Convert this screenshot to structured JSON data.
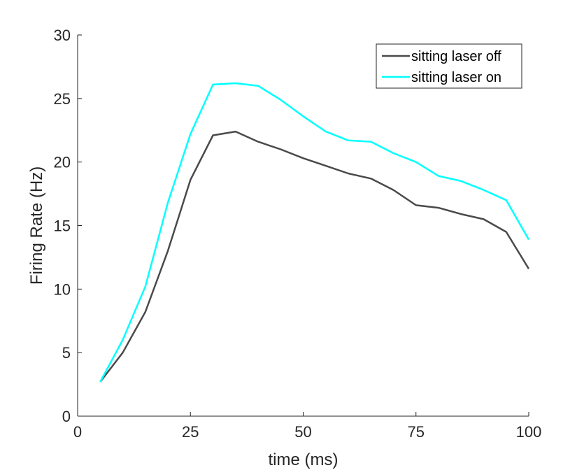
{
  "chart_data": {
    "type": "line",
    "title": "",
    "xlabel": "time (ms)",
    "ylabel": "Firing Rate (Hz)",
    "xlim": [
      0,
      100
    ],
    "ylim": [
      0,
      30
    ],
    "xticks": [
      0,
      25,
      50,
      75,
      100
    ],
    "yticks": [
      0,
      5,
      10,
      15,
      20,
      25,
      30
    ],
    "grid": false,
    "legend_position": "top-right",
    "x": [
      5,
      10,
      15,
      20,
      25,
      30,
      35,
      40,
      45,
      50,
      55,
      60,
      65,
      70,
      75,
      80,
      85,
      90,
      95,
      100
    ],
    "series": [
      {
        "name": "sitting laser off",
        "color": "#4a4a4a",
        "values": [
          2.7,
          5.0,
          8.2,
          13.0,
          18.6,
          22.1,
          22.4,
          21.6,
          21.0,
          20.3,
          19.7,
          19.1,
          18.7,
          17.8,
          16.6,
          16.4,
          15.9,
          15.5,
          14.5,
          11.6
        ]
      },
      {
        "name": "sitting laser on",
        "color": "#00ffff",
        "values": [
          2.7,
          6.0,
          10.2,
          16.8,
          22.2,
          26.1,
          26.2,
          26.0,
          24.9,
          23.6,
          22.4,
          21.7,
          21.6,
          20.7,
          20.0,
          18.9,
          18.5,
          17.8,
          17.0,
          13.9
        ]
      }
    ]
  }
}
